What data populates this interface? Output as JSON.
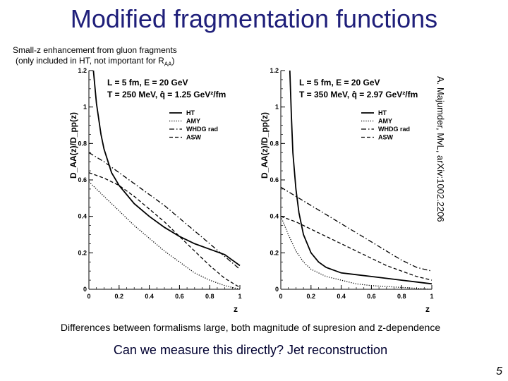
{
  "slide": {
    "title": "Modified fragmentation functions",
    "subtitle_line1": "Small-z enhancement from gluon fragments",
    "subtitle_line2_prefix": "(only included in HT, not important for R",
    "subtitle_line2_sub": "AA",
    "subtitle_line2_suffix": ")",
    "citation": "A. Majumder, MvL, arXiv:1002.2206",
    "footer1": "Differences between formalisms large, both magnitude of supresion and z-dependence",
    "footer2": "Can we measure this directly? Jet reconstruction",
    "page_number": "5"
  },
  "chart_data": [
    {
      "type": "line",
      "title": "",
      "xlabel": "z",
      "ylabel": "D_AA(z)/D_pp(z)",
      "xlim": [
        0,
        1
      ],
      "ylim": [
        0,
        1.2
      ],
      "xticks": [
        "0",
        "0.2",
        "0.4",
        "0.6",
        "0.8",
        "1"
      ],
      "yticks": [
        "0",
        "0.2",
        "0.4",
        "0.6",
        "0.8",
        "1",
        "1.2"
      ],
      "info_line1": "L = 5 fm, E = 20 GeV",
      "info_line2": "T = 250 MeV, q̂ = 1.25 GeV²/fm",
      "legend": [
        "HT",
        "AMY",
        "WHDG rad",
        "ASW"
      ],
      "series": [
        {
          "name": "HT",
          "style": "solid",
          "x": [
            0.03,
            0.05,
            0.08,
            0.1,
            0.15,
            0.2,
            0.3,
            0.4,
            0.5,
            0.6,
            0.7,
            0.8,
            0.9,
            0.95,
            1.0
          ],
          "y": [
            1.2,
            1.02,
            0.85,
            0.77,
            0.64,
            0.57,
            0.47,
            0.4,
            0.34,
            0.29,
            0.25,
            0.22,
            0.19,
            0.16,
            0.13
          ]
        },
        {
          "name": "AMY",
          "style": "dotted",
          "x": [
            0.0,
            0.05,
            0.1,
            0.2,
            0.3,
            0.4,
            0.5,
            0.6,
            0.7,
            0.8,
            0.9,
            0.95,
            1.0
          ],
          "y": [
            0.59,
            0.55,
            0.51,
            0.43,
            0.35,
            0.28,
            0.21,
            0.15,
            0.09,
            0.05,
            0.02,
            0.01,
            0.0
          ]
        },
        {
          "name": "WHDG rad",
          "style": "dashdot",
          "x": [
            0.0,
            0.1,
            0.2,
            0.3,
            0.4,
            0.5,
            0.6,
            0.7,
            0.8,
            0.9,
            1.0
          ],
          "y": [
            0.75,
            0.7,
            0.64,
            0.58,
            0.52,
            0.46,
            0.39,
            0.32,
            0.25,
            0.18,
            0.11
          ]
        },
        {
          "name": "ASW",
          "style": "dashed",
          "x": [
            0.0,
            0.1,
            0.2,
            0.3,
            0.4,
            0.5,
            0.6,
            0.7,
            0.8,
            0.9,
            1.0
          ],
          "y": [
            0.64,
            0.61,
            0.57,
            0.51,
            0.44,
            0.37,
            0.29,
            0.21,
            0.13,
            0.06,
            0.01
          ]
        }
      ]
    },
    {
      "type": "line",
      "title": "",
      "xlabel": "z",
      "ylabel": "D_AA(z)/D_pp(z)",
      "xlim": [
        0,
        1
      ],
      "ylim": [
        0,
        1.2
      ],
      "xticks": [
        "0",
        "0.2",
        "0.4",
        "0.6",
        "0.8",
        "1"
      ],
      "yticks": [
        "0",
        "0.2",
        "0.4",
        "0.6",
        "0.8",
        "1",
        "1.2"
      ],
      "info_line1": "L = 5 fm, E = 20 GeV",
      "info_line2": "T = 350 MeV, q̂ = 2.97 GeV²/fm",
      "legend": [
        "HT",
        "AMY",
        "WHDG rad",
        "ASW"
      ],
      "series": [
        {
          "name": "HT",
          "style": "solid",
          "x": [
            0.06,
            0.07,
            0.08,
            0.1,
            0.12,
            0.15,
            0.2,
            0.25,
            0.3,
            0.4,
            0.5,
            0.6,
            0.7,
            0.8,
            0.9,
            1.0
          ],
          "y": [
            1.2,
            0.95,
            0.75,
            0.55,
            0.42,
            0.3,
            0.2,
            0.15,
            0.12,
            0.09,
            0.08,
            0.07,
            0.06,
            0.05,
            0.04,
            0.03
          ]
        },
        {
          "name": "AMY",
          "style": "dotted",
          "x": [
            0.0,
            0.05,
            0.1,
            0.15,
            0.2,
            0.3,
            0.4,
            0.5,
            0.6,
            0.7,
            0.8,
            0.9,
            1.0
          ],
          "y": [
            0.4,
            0.3,
            0.21,
            0.15,
            0.11,
            0.07,
            0.05,
            0.03,
            0.02,
            0.015,
            0.01,
            0.005,
            0.0
          ]
        },
        {
          "name": "WHDG rad",
          "style": "dashdot",
          "x": [
            0.0,
            0.1,
            0.2,
            0.3,
            0.4,
            0.5,
            0.6,
            0.7,
            0.8,
            0.9,
            1.0
          ],
          "y": [
            0.56,
            0.51,
            0.46,
            0.41,
            0.36,
            0.31,
            0.26,
            0.21,
            0.16,
            0.12,
            0.1
          ]
        },
        {
          "name": "ASW",
          "style": "dashed",
          "x": [
            0.0,
            0.1,
            0.2,
            0.3,
            0.4,
            0.5,
            0.6,
            0.7,
            0.8,
            0.9,
            1.0
          ],
          "y": [
            0.4,
            0.37,
            0.33,
            0.29,
            0.25,
            0.21,
            0.17,
            0.13,
            0.1,
            0.07,
            0.05
          ]
        }
      ]
    }
  ]
}
